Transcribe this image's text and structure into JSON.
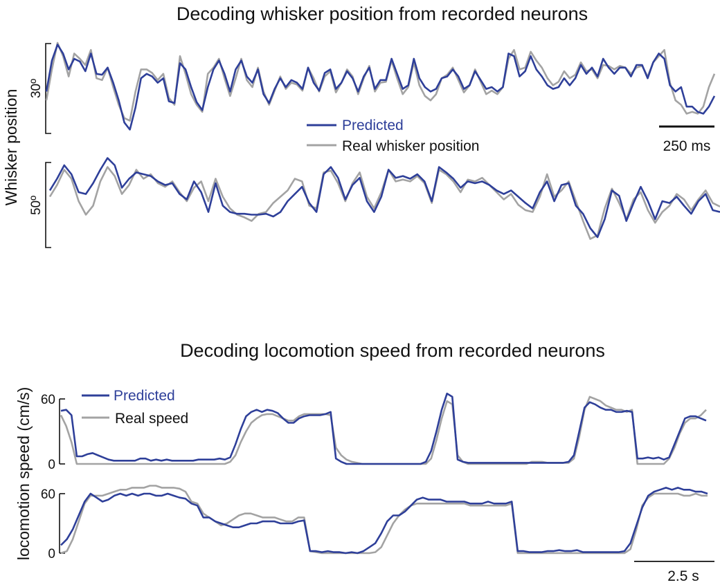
{
  "colors": {
    "predicted": "#2e3f99",
    "real": "#a3a3a3",
    "axis": "#111111"
  },
  "whisker_section": {
    "title": "Decoding whisker position from recorded neurons",
    "ylabel": "Whisker position",
    "legend": {
      "predicted": "Predicted",
      "real": "Real whisker position"
    },
    "scalebar_label": "250 ms"
  },
  "speed_section": {
    "title": "Decoding locomotion speed from recorded neurons",
    "ylabel": "locomotion speed (cm/s)",
    "legend": {
      "predicted": "Predicted",
      "real": "Real speed"
    },
    "scalebar_label": "2.5 s"
  },
  "chart_data": [
    {
      "type": "line",
      "title": "Decoding whisker position from recorded neurons",
      "ylabel": "Whisker position",
      "scale_bar_y": "30º",
      "scale_bar_x": "250 ms",
      "series": [
        {
          "name": "Predicted",
          "values": [
            0.45,
            0.8,
            0.98,
            0.88,
            0.7,
            0.82,
            0.79,
            0.68,
            0.88,
            0.65,
            0.64,
            0.72,
            0.55,
            0.35,
            0.1,
            0.02,
            0.27,
            0.6,
            0.65,
            0.62,
            0.55,
            0.6,
            0.34,
            0.32,
            0.77,
            0.7,
            0.5,
            0.33,
            0.24,
            0.5,
            0.7,
            0.8,
            0.65,
            0.45,
            0.7,
            0.8,
            0.62,
            0.55,
            0.7,
            0.42,
            0.32,
            0.48,
            0.6,
            0.5,
            0.58,
            0.55,
            0.48,
            0.72,
            0.55,
            0.46,
            0.66,
            0.7,
            0.48,
            0.55,
            0.68,
            0.6,
            0.45,
            0.62,
            0.72,
            0.48,
            0.58,
            0.58,
            0.82,
            0.65,
            0.48,
            0.52,
            0.82,
            0.6,
            0.5,
            0.45,
            0.48,
            0.6,
            0.62,
            0.7,
            0.62,
            0.48,
            0.52,
            0.68,
            0.58,
            0.48,
            0.5,
            0.45,
            0.5,
            0.88,
            0.85,
            0.62,
            0.68,
            0.85,
            0.7,
            0.62,
            0.52,
            0.48,
            0.5,
            0.6,
            0.52,
            0.6,
            0.75,
            0.65,
            0.72,
            0.62,
            0.82,
            0.72,
            0.65,
            0.72,
            0.72,
            0.62,
            0.75,
            0.75,
            0.6,
            0.78,
            0.88,
            0.82,
            0.52,
            0.45,
            0.5,
            0.28,
            0.28,
            0.22,
            0.2,
            0.28,
            0.4
          ]
        },
        {
          "name": "Real whisker position",
          "values": [
            0.35,
            0.7,
            1.0,
            0.85,
            0.62,
            0.88,
            0.82,
            0.75,
            0.92,
            0.6,
            0.58,
            0.72,
            0.5,
            0.3,
            0.15,
            0.12,
            0.45,
            0.7,
            0.7,
            0.66,
            0.58,
            0.65,
            0.38,
            0.3,
            0.85,
            0.65,
            0.42,
            0.3,
            0.22,
            0.65,
            0.72,
            0.82,
            0.6,
            0.4,
            0.6,
            0.82,
            0.58,
            0.5,
            0.72,
            0.45,
            0.3,
            0.46,
            0.62,
            0.48,
            0.55,
            0.53,
            0.46,
            0.72,
            0.6,
            0.45,
            0.62,
            0.68,
            0.44,
            0.55,
            0.7,
            0.62,
            0.42,
            0.6,
            0.74,
            0.45,
            0.55,
            0.56,
            0.8,
            0.6,
            0.42,
            0.5,
            0.78,
            0.52,
            0.4,
            0.35,
            0.42,
            0.6,
            0.64,
            0.72,
            0.58,
            0.44,
            0.52,
            0.7,
            0.56,
            0.42,
            0.46,
            0.42,
            0.5,
            0.82,
            0.92,
            0.7,
            0.72,
            0.9,
            0.8,
            0.72,
            0.6,
            0.52,
            0.56,
            0.68,
            0.6,
            0.64,
            0.78,
            0.68,
            0.7,
            0.6,
            0.75,
            0.74,
            0.7,
            0.74,
            0.72,
            0.65,
            0.72,
            0.74,
            0.62,
            0.78,
            0.85,
            0.92,
            0.55,
            0.35,
            0.3,
            0.2,
            0.22,
            0.2,
            0.28,
            0.5,
            0.65
          ]
        }
      ]
    },
    {
      "type": "line",
      "ylabel": "Whisker position",
      "scale_bar_y": "50º",
      "series": [
        {
          "name": "Predicted",
          "values": [
            0.62,
            0.75,
            0.9,
            0.8,
            0.6,
            0.58,
            0.7,
            0.85,
            0.98,
            0.9,
            0.65,
            0.75,
            0.82,
            0.8,
            0.78,
            0.72,
            0.68,
            0.7,
            0.58,
            0.52,
            0.72,
            0.6,
            0.38,
            0.7,
            0.45,
            0.38,
            0.36,
            0.36,
            0.35,
            0.35,
            0.36,
            0.33,
            0.38,
            0.5,
            0.58,
            0.66,
            0.48,
            0.38,
            0.8,
            0.88,
            0.76,
            0.52,
            0.68,
            0.76,
            0.5,
            0.38,
            0.55,
            0.85,
            0.76,
            0.78,
            0.75,
            0.8,
            0.72,
            0.5,
            0.88,
            0.82,
            0.75,
            0.65,
            0.72,
            0.7,
            0.72,
            0.68,
            0.62,
            0.58,
            0.62,
            0.55,
            0.48,
            0.42,
            0.6,
            0.72,
            0.5,
            0.68,
            0.7,
            0.45,
            0.36,
            0.2,
            0.1,
            0.3,
            0.62,
            0.56,
            0.28,
            0.48,
            0.66,
            0.5,
            0.3,
            0.5,
            0.48,
            0.55,
            0.45,
            0.36,
            0.5,
            0.58,
            0.4,
            0.38
          ]
        },
        {
          "name": "Real whisker position",
          "values": [
            0.55,
            0.68,
            0.85,
            0.75,
            0.5,
            0.35,
            0.45,
            0.72,
            0.88,
            0.78,
            0.58,
            0.68,
            0.85,
            0.75,
            0.8,
            0.7,
            0.66,
            0.72,
            0.6,
            0.5,
            0.65,
            0.72,
            0.5,
            0.75,
            0.55,
            0.42,
            0.35,
            0.32,
            0.28,
            0.36,
            0.38,
            0.48,
            0.55,
            0.62,
            0.75,
            0.72,
            0.45,
            0.42,
            0.82,
            0.84,
            0.7,
            0.5,
            0.7,
            0.82,
            0.55,
            0.42,
            0.6,
            0.85,
            0.72,
            0.74,
            0.72,
            0.78,
            0.7,
            0.48,
            0.85,
            0.8,
            0.72,
            0.6,
            0.74,
            0.72,
            0.76,
            0.68,
            0.6,
            0.52,
            0.58,
            0.46,
            0.4,
            0.38,
            0.55,
            0.8,
            0.55,
            0.62,
            0.72,
            0.5,
            0.28,
            0.08,
            0.12,
            0.42,
            0.64,
            0.48,
            0.3,
            0.52,
            0.6,
            0.4,
            0.26,
            0.38,
            0.45,
            0.58,
            0.52,
            0.4,
            0.52,
            0.62,
            0.48,
            0.44
          ]
        }
      ]
    },
    {
      "type": "line",
      "title": "Decoding locomotion speed from recorded neurons",
      "ylabel": "locomotion speed (cm/s)",
      "yticks": [
        0,
        60
      ],
      "ylim": [
        0,
        70
      ],
      "scale_bar_x": "2.5 s",
      "series": [
        {
          "name": "Predicted",
          "values": [
            49,
            50,
            45,
            7,
            7,
            9,
            10,
            8,
            6,
            4,
            3,
            3,
            3,
            3,
            3,
            5,
            5,
            3,
            4,
            3,
            4,
            3,
            3,
            3,
            3,
            3,
            4,
            4,
            4,
            4,
            5,
            4,
            6,
            18,
            32,
            44,
            48,
            50,
            48,
            50,
            49,
            47,
            42,
            38,
            38,
            42,
            44,
            45,
            45,
            45,
            46,
            48,
            5,
            2,
            0,
            0,
            0,
            0,
            0,
            0,
            0,
            0,
            0,
            0,
            0,
            0,
            0,
            0,
            0,
            2,
            12,
            30,
            50,
            65,
            62,
            4,
            2,
            1,
            1,
            1,
            1,
            1,
            1,
            1,
            1,
            1,
            1,
            1,
            1,
            1,
            1,
            1,
            1,
            1,
            1,
            1,
            2,
            8,
            30,
            52,
            57,
            55,
            52,
            50,
            50,
            48,
            48,
            49,
            48,
            5,
            5,
            6,
            5,
            6,
            4,
            6,
            18,
            30,
            42,
            44,
            44,
            42,
            40
          ]
        },
        {
          "name": "Real speed",
          "values": [
            45,
            35,
            20,
            0,
            0,
            0,
            0,
            0,
            0,
            0,
            0,
            0,
            0,
            0,
            0,
            0,
            0,
            0,
            0,
            0,
            0,
            0,
            0,
            0,
            0,
            0,
            0,
            0,
            0,
            0,
            0,
            0,
            2,
            8,
            20,
            30,
            38,
            42,
            45,
            46,
            46,
            44,
            42,
            40,
            40,
            44,
            46,
            46,
            46,
            46,
            46,
            45,
            15,
            8,
            4,
            2,
            1,
            0,
            0,
            0,
            0,
            0,
            0,
            0,
            0,
            0,
            0,
            0,
            0,
            0,
            5,
            22,
            42,
            58,
            55,
            8,
            2,
            0,
            0,
            0,
            0,
            0,
            0,
            0,
            0,
            0,
            0,
            0,
            0,
            2,
            2,
            2,
            1,
            1,
            1,
            1,
            1,
            5,
            25,
            50,
            62,
            60,
            58,
            54,
            52,
            50,
            50,
            48,
            50,
            0,
            0,
            0,
            0,
            0,
            0,
            5,
            15,
            28,
            38,
            42,
            42,
            45,
            50
          ]
        }
      ]
    },
    {
      "type": "line",
      "ylabel": "locomotion speed (cm/s)",
      "yticks": [
        0,
        60
      ],
      "ylim": [
        0,
        70
      ],
      "series": [
        {
          "name": "Predicted",
          "values": [
            8,
            14,
            24,
            38,
            52,
            60,
            56,
            52,
            54,
            58,
            60,
            58,
            60,
            58,
            60,
            60,
            58,
            58,
            60,
            58,
            56,
            55,
            50,
            48,
            36,
            36,
            32,
            30,
            28,
            26,
            26,
            28,
            30,
            30,
            32,
            32,
            32,
            30,
            30,
            30,
            32,
            33,
            2,
            2,
            1,
            2,
            1,
            1,
            0,
            1,
            0,
            2,
            6,
            10,
            20,
            32,
            38,
            38,
            42,
            48,
            54,
            56,
            54,
            54,
            54,
            52,
            52,
            52,
            52,
            50,
            50,
            50,
            52,
            50,
            50,
            50,
            52,
            2,
            2,
            1,
            1,
            1,
            2,
            2,
            3,
            2,
            2,
            3,
            1,
            1,
            1,
            1,
            1,
            1,
            1,
            2,
            10,
            28,
            46,
            58,
            62,
            64,
            66,
            64,
            66,
            64,
            64,
            62,
            62,
            60
          ]
        },
        {
          "name": "Real speed",
          "values": [
            0,
            2,
            14,
            32,
            50,
            58,
            58,
            58,
            60,
            62,
            64,
            64,
            66,
            66,
            66,
            68,
            68,
            66,
            66,
            66,
            65,
            62,
            52,
            50,
            40,
            36,
            32,
            28,
            30,
            34,
            38,
            40,
            40,
            38,
            36,
            36,
            36,
            34,
            32,
            32,
            36,
            36,
            2,
            1,
            0,
            0,
            0,
            0,
            0,
            0,
            0,
            0,
            0,
            1,
            6,
            18,
            30,
            38,
            44,
            48,
            50,
            50,
            50,
            50,
            50,
            50,
            50,
            50,
            50,
            48,
            48,
            48,
            48,
            48,
            48,
            48,
            50,
            0,
            0,
            0,
            0,
            0,
            0,
            0,
            0,
            0,
            0,
            0,
            0,
            0,
            0,
            0,
            0,
            0,
            0,
            0,
            4,
            24,
            48,
            56,
            60,
            60,
            60,
            60,
            60,
            58,
            58,
            60,
            58,
            58
          ]
        }
      ]
    }
  ]
}
